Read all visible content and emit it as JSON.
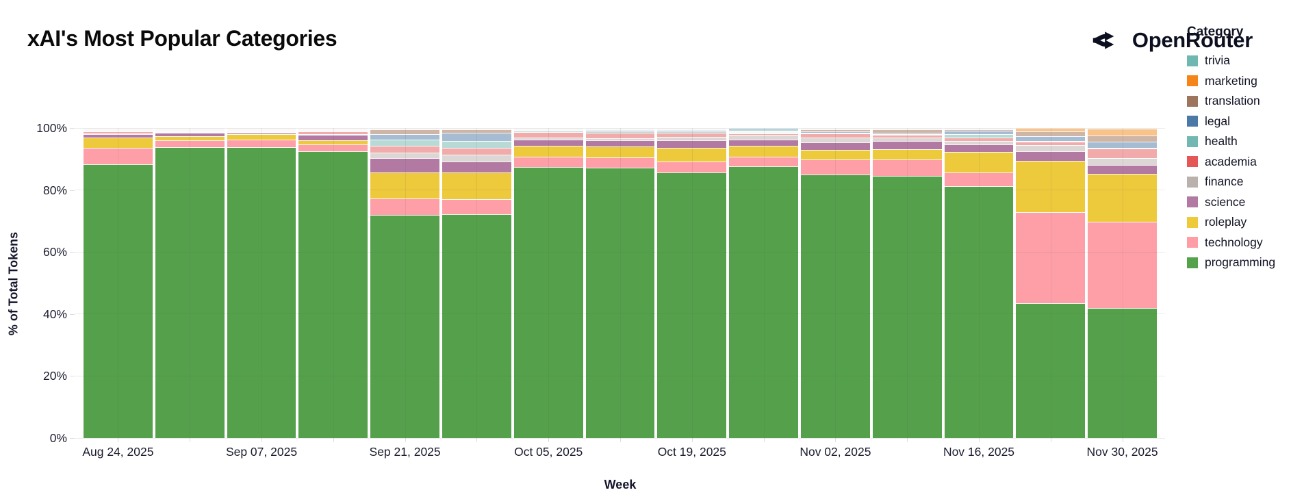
{
  "header": {
    "title": "xAI's Most Popular Categories",
    "brand": "OpenRouter",
    "brand_icon": "openrouter-fork-arrows-icon",
    "brand_color": "#0c0f1f"
  },
  "chart_data": {
    "type": "bar",
    "variant": "stacked-normalized",
    "title": "xAI's Most Popular Categories",
    "xlabel": "Week",
    "ylabel": "% of Total Tokens",
    "ylim": [
      0,
      100
    ],
    "grid": "faint, visible through translucent bars",
    "y_ticks": [
      "0%",
      "20%",
      "40%",
      "60%",
      "80%",
      "100%"
    ],
    "categories": [
      "Aug 24, 2025",
      "Aug 31, 2025",
      "Sep 07, 2025",
      "Sep 14, 2025",
      "Sep 21, 2025",
      "Sep 28, 2025",
      "Oct 05, 2025",
      "Oct 12, 2025",
      "Oct 19, 2025",
      "Oct 26, 2025",
      "Nov 02, 2025",
      "Nov 09, 2025",
      "Nov 16, 2025",
      "Nov 23, 2025",
      "Nov 30, 2025"
    ],
    "x_tick_labels": [
      "Aug 24, 2025",
      "Sep 07, 2025",
      "Sep 21, 2025",
      "Oct 05, 2025",
      "Oct 19, 2025",
      "Nov 02, 2025",
      "Nov 16, 2025",
      "Nov 30, 2025"
    ],
    "legend_title": "Category",
    "legend_position": "right",
    "legend_order_top_to_bottom": [
      "trivia",
      "marketing",
      "translation",
      "legal",
      "health",
      "academia",
      "finance",
      "science",
      "roleplay",
      "technology",
      "programming"
    ],
    "stack_order": "bottom-to-top",
    "series": [
      {
        "name": "programming",
        "legend_color": "#54a24b",
        "bar_color": "#55a04b",
        "values": [
          89.0,
          94.7,
          95.0,
          93.2,
          72.2,
          72.4,
          87.9,
          87.4,
          85.9,
          87.9,
          85.2,
          84.8,
          81.5,
          43.5,
          41.9
        ]
      },
      {
        "name": "technology",
        "legend_color": "#ff9da6",
        "bar_color": "#fe9fa8",
        "values": [
          5.3,
          2.4,
          2.4,
          2.2,
          5.3,
          4.9,
          3.3,
          3.5,
          3.5,
          3.1,
          4.9,
          5.3,
          4.4,
          29.4,
          28.0
        ]
      },
      {
        "name": "roleplay",
        "legend_color": "#eeca3b",
        "bar_color": "#edc93c",
        "values": [
          3.3,
          1.3,
          1.8,
          1.5,
          8.4,
          8.6,
          3.5,
          3.5,
          4.4,
          3.5,
          3.1,
          3.3,
          6.6,
          16.6,
          15.5
        ]
      },
      {
        "name": "science",
        "legend_color": "#b279a2",
        "bar_color": "#b279a2",
        "values": [
          1.2,
          1.0,
          0.5,
          1.8,
          4.6,
          3.5,
          2.0,
          2.0,
          2.6,
          2.0,
          2.4,
          2.6,
          2.6,
          2.9,
          2.9
        ]
      },
      {
        "name": "finance",
        "legend_color": "#bab0ac",
        "bar_color": "#dcd7d4",
        "values": [
          0.2,
          0.1,
          0.05,
          0.2,
          1.8,
          2.2,
          0.7,
          0.7,
          1.1,
          1.7,
          1.5,
          1.2,
          1.1,
          2.2,
          2.2
        ]
      },
      {
        "name": "academia",
        "legend_color": "#e45756",
        "bar_color": "#f1abaa",
        "values": [
          0.6,
          0.3,
          0.15,
          0.8,
          2.2,
          2.2,
          1.8,
          1.8,
          1.3,
          0.4,
          1.3,
          0.8,
          1.1,
          1.1,
          2.9
        ]
      },
      {
        "name": "health",
        "legend_color": "#72b7b2",
        "bar_color": "#b8dad6",
        "values": [
          0.1,
          0.05,
          0.02,
          0.1,
          2.0,
          2.2,
          0.3,
          0.4,
          0.4,
          0.2,
          0.4,
          0.3,
          1.1,
          0.2,
          0.2
        ]
      },
      {
        "name": "legal",
        "legend_color": "#4c78a8",
        "bar_color": "#a5bcd3",
        "values": [
          0.1,
          0.05,
          0.02,
          0.1,
          1.8,
          2.6,
          0.3,
          0.4,
          0.4,
          0.2,
          0.4,
          0.4,
          1.1,
          1.5,
          2.2
        ]
      },
      {
        "name": "translation",
        "legend_color": "#9d755d",
        "bar_color": "#cfb5a5",
        "values": [
          0.1,
          0.05,
          0.03,
          0.05,
          1.5,
          1.2,
          0.1,
          0.2,
          0.3,
          0.1,
          0.6,
          1.1,
          0.4,
          1.6,
          1.9
        ]
      },
      {
        "name": "marketing",
        "legend_color": "#f58518",
        "bar_color": "#f9c389",
        "values": [
          0.05,
          0.025,
          0.015,
          0.02,
          0.1,
          0.1,
          0.05,
          0.05,
          0.05,
          0.05,
          0.1,
          0.1,
          0.05,
          1.0,
          2.2
        ]
      },
      {
        "name": "trivia",
        "legend_color": "#6fb8b2",
        "bar_color": "#b6d5da",
        "values": [
          0.05,
          0.025,
          0.015,
          0.03,
          0.1,
          0.1,
          0.05,
          0.05,
          0.05,
          0.85,
          0.1,
          0.1,
          0.05,
          0.0,
          0.1
        ]
      }
    ]
  }
}
